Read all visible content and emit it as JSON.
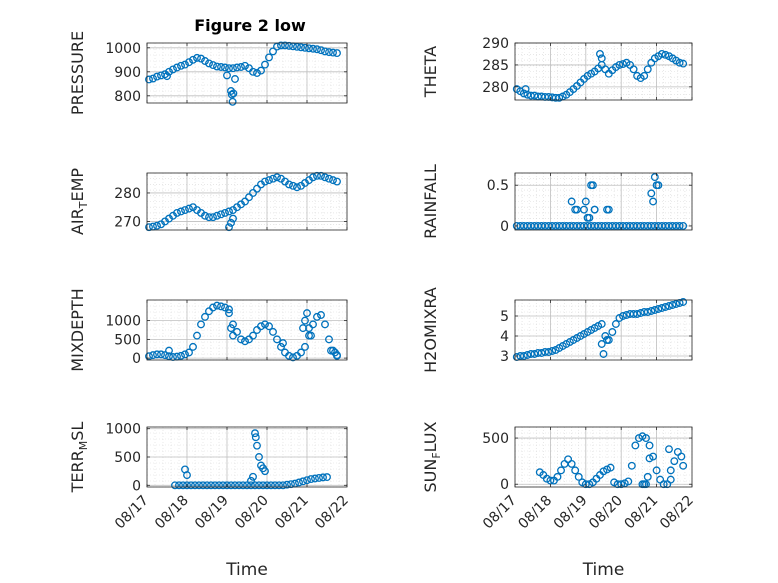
{
  "figure_title": "Figure 2 low",
  "colors": {
    "marker": "#0072BD",
    "axis": "#262626",
    "grid": "#bfbfbf",
    "background": "#ffffff"
  },
  "chart_data": [
    {
      "type": "scatter",
      "ylabel": "PRESSURE",
      "yticks": [
        "800",
        "900",
        "1000"
      ],
      "ylim": [
        770,
        1020
      ],
      "xlim": [
        0,
        5
      ],
      "xticklabels": [],
      "xlabel": "",
      "grid": true,
      "x": [
        0.05,
        0.15,
        0.25,
        0.35,
        0.45,
        0.55,
        0.65,
        0.75,
        0.85,
        0.95,
        1.05,
        1.15,
        1.25,
        1.35,
        1.45,
        1.55,
        1.65,
        1.75,
        1.85,
        1.95,
        2.05,
        2.15,
        2.25,
        2.35,
        2.45,
        2.55,
        2.65,
        2.75,
        2.85,
        2.95,
        3.05,
        3.15,
        3.25,
        3.35,
        3.45,
        3.55,
        3.65,
        3.75,
        3.85,
        3.95,
        4.05,
        4.15,
        4.25,
        4.35,
        4.45,
        4.55,
        4.65,
        4.75,
        2.1,
        2.12,
        2.14,
        2.16,
        2.2,
        2.0,
        0.5
      ],
      "y": [
        868,
        872,
        880,
        885,
        890,
        900,
        910,
        918,
        925,
        930,
        940,
        950,
        958,
        955,
        945,
        935,
        928,
        922,
        920,
        918,
        915,
        915,
        918,
        920,
        925,
        915,
        900,
        895,
        905,
        930,
        960,
        985,
        1005,
        1010,
        1010,
        1008,
        1006,
        1004,
        1002,
        1000,
        998,
        996,
        994,
        990,
        985,
        982,
        980,
        978,
        820,
        805,
        775,
        810,
        870,
        885,
        882
      ]
    },
    {
      "type": "scatter",
      "ylabel": "THETA",
      "yticks": [
        "280",
        "285",
        "290"
      ],
      "ylim": [
        277,
        290
      ],
      "xlim": [
        0,
        5
      ],
      "xticklabels": [],
      "xlabel": "",
      "grid": true,
      "x": [
        0.05,
        0.15,
        0.25,
        0.35,
        0.45,
        0.55,
        0.65,
        0.75,
        0.85,
        0.95,
        1.05,
        1.15,
        1.25,
        1.35,
        1.45,
        1.55,
        1.65,
        1.75,
        1.85,
        1.95,
        2.05,
        2.15,
        2.25,
        2.35,
        2.45,
        2.55,
        2.65,
        2.75,
        2.85,
        2.95,
        3.05,
        3.15,
        3.25,
        3.35,
        3.45,
        3.55,
        3.65,
        3.75,
        3.85,
        3.95,
        4.05,
        4.15,
        4.25,
        4.35,
        4.45,
        4.55,
        4.65,
        4.75,
        0.3,
        2.4,
        2.45
      ],
      "y": [
        279.5,
        279,
        278.5,
        278.2,
        278,
        278,
        277.8,
        277.8,
        277.7,
        277.7,
        277.6,
        277.5,
        277.5,
        277.8,
        278.2,
        278.8,
        279.5,
        280.2,
        281,
        281.8,
        282.5,
        283,
        283.5,
        284.2,
        285,
        284,
        283,
        283.8,
        284.5,
        285,
        285.2,
        285.5,
        285,
        284,
        282.5,
        282,
        282.5,
        284,
        285.5,
        286.5,
        287,
        287.5,
        287.3,
        287,
        286.5,
        286,
        285.5,
        285.3,
        279.5,
        287.5,
        286.5
      ]
    },
    {
      "type": "scatter",
      "ylabel": "AIR_TEMP",
      "yticks": [
        "270",
        "280"
      ],
      "ylim": [
        267,
        287
      ],
      "xlim": [
        0,
        5
      ],
      "xticklabels": [],
      "xlabel": "",
      "grid": true,
      "x": [
        0.05,
        0.15,
        0.25,
        0.35,
        0.45,
        0.55,
        0.65,
        0.75,
        0.85,
        0.95,
        1.05,
        1.15,
        1.25,
        1.35,
        1.45,
        1.55,
        1.65,
        1.75,
        1.85,
        1.95,
        2.05,
        2.15,
        2.25,
        2.35,
        2.45,
        2.55,
        2.65,
        2.75,
        2.85,
        2.95,
        3.05,
        3.15,
        3.25,
        3.35,
        3.45,
        3.55,
        3.65,
        3.75,
        3.85,
        3.95,
        4.05,
        4.15,
        4.25,
        4.35,
        4.45,
        4.55,
        4.65,
        4.75,
        2.05,
        2.1,
        2.15
      ],
      "y": [
        268,
        268.2,
        268.5,
        269,
        270,
        271,
        272,
        273,
        273.5,
        274,
        274.5,
        275,
        274,
        273,
        272,
        271.5,
        271.5,
        272,
        272.5,
        273,
        273.5,
        274,
        275,
        276,
        277,
        278.5,
        280,
        281.5,
        283,
        284,
        284.5,
        285,
        285.5,
        285,
        284,
        283,
        282.5,
        282,
        282.5,
        283.5,
        284.5,
        285.5,
        286,
        286,
        285.5,
        285,
        284.5,
        284,
        268,
        269.5,
        271
      ]
    },
    {
      "type": "scatter",
      "ylabel": "RAINFALL",
      "yticks": [
        "0",
        "0.5"
      ],
      "ylim": [
        -0.05,
        0.65
      ],
      "xlim": [
        0,
        5
      ],
      "xticklabels": [],
      "xlabel": "",
      "grid": true,
      "x": [
        0.05,
        0.15,
        0.25,
        0.35,
        0.45,
        0.55,
        0.65,
        0.75,
        0.85,
        0.95,
        1.05,
        1.15,
        1.25,
        1.35,
        1.45,
        1.55,
        1.65,
        1.75,
        1.85,
        1.95,
        2.05,
        2.15,
        2.25,
        2.35,
        2.45,
        2.55,
        2.65,
        2.75,
        2.85,
        2.95,
        3.05,
        3.15,
        3.25,
        3.35,
        3.45,
        3.55,
        3.65,
        3.75,
        3.85,
        3.95,
        4.05,
        4.15,
        4.25,
        4.35,
        4.45,
        4.55,
        4.65,
        4.75,
        1.6,
        1.7,
        1.75,
        1.95,
        2.0,
        2.05,
        2.1,
        2.15,
        2.2,
        2.25,
        2.25,
        2.6,
        2.65,
        3.85,
        3.9,
        3.95,
        4.0,
        4.05
      ],
      "y": [
        0,
        0,
        0,
        0,
        0,
        0,
        0,
        0,
        0,
        0,
        0,
        0,
        0,
        0,
        0,
        0,
        0,
        0,
        0,
        0,
        0,
        0,
        0,
        0,
        0,
        0,
        0,
        0,
        0,
        0,
        0,
        0,
        0,
        0,
        0,
        0,
        0,
        0,
        0,
        0,
        0,
        0,
        0,
        0,
        0,
        0,
        0,
        0,
        0.3,
        0.2,
        0.2,
        0.2,
        0.3,
        0.1,
        0.1,
        0.5,
        0.5,
        0.2,
        0.2,
        0.2,
        0.2,
        0.4,
        0.3,
        0.6,
        0.5,
        0.5
      ]
    },
    {
      "type": "scatter",
      "ylabel": "MIXDEPTH",
      "yticks": [
        "0",
        "500",
        "1000"
      ],
      "ylim": [
        -50,
        1550
      ],
      "xlim": [
        0,
        5
      ],
      "xticklabels": [],
      "xlabel": "",
      "grid": true,
      "x": [
        0.05,
        0.15,
        0.25,
        0.35,
        0.45,
        0.55,
        0.65,
        0.75,
        0.85,
        0.95,
        1.05,
        1.15,
        1.25,
        1.35,
        1.45,
        1.55,
        1.65,
        1.75,
        1.85,
        1.95,
        2.05,
        2.15,
        2.25,
        2.35,
        2.45,
        2.55,
        2.65,
        2.75,
        2.85,
        2.95,
        3.05,
        3.15,
        3.25,
        3.35,
        3.45,
        3.55,
        3.65,
        3.75,
        3.85,
        3.95,
        4.05,
        4.15,
        4.25,
        4.35,
        4.45,
        4.55,
        4.65,
        4.75,
        0.55,
        2.05,
        2.1,
        2.15,
        3.4,
        3.9,
        3.95,
        4.0,
        4.05,
        4.1,
        4.6,
        4.7,
        4.75
      ],
      "y": [
        50,
        80,
        100,
        100,
        80,
        50,
        30,
        40,
        60,
        100,
        150,
        300,
        600,
        900,
        1100,
        1250,
        1350,
        1400,
        1380,
        1350,
        1300,
        900,
        700,
        500,
        450,
        500,
        600,
        750,
        850,
        900,
        850,
        700,
        500,
        300,
        150,
        60,
        20,
        60,
        150,
        300,
        600,
        900,
        1100,
        1150,
        900,
        500,
        200,
        80,
        200,
        1200,
        800,
        600,
        400,
        800,
        1000,
        1200,
        800,
        600,
        200,
        150,
        60
      ]
    },
    {
      "type": "scatter",
      "ylabel": "H2OMIXRA",
      "yticks": [
        "3",
        "4",
        "5"
      ],
      "ylim": [
        2.8,
        5.8
      ],
      "xlim": [
        0,
        5
      ],
      "xticklabels": [],
      "xlabel": "",
      "grid": true,
      "x": [
        0.05,
        0.15,
        0.25,
        0.35,
        0.45,
        0.55,
        0.65,
        0.75,
        0.85,
        0.95,
        1.05,
        1.15,
        1.25,
        1.35,
        1.45,
        1.55,
        1.65,
        1.75,
        1.85,
        1.95,
        2.05,
        2.15,
        2.25,
        2.35,
        2.45,
        2.55,
        2.65,
        2.75,
        2.85,
        2.95,
        3.05,
        3.15,
        3.25,
        3.35,
        3.45,
        3.55,
        3.65,
        3.75,
        3.85,
        3.95,
        4.05,
        4.15,
        4.25,
        4.35,
        4.45,
        4.55,
        4.65,
        4.75,
        2.45,
        2.5,
        2.6
      ],
      "y": [
        2.95,
        3,
        3,
        3.05,
        3.1,
        3.1,
        3.15,
        3.15,
        3.2,
        3.2,
        3.25,
        3.3,
        3.4,
        3.5,
        3.6,
        3.7,
        3.8,
        3.9,
        4.0,
        4.1,
        4.2,
        4.3,
        4.4,
        4.5,
        4.6,
        4.0,
        3.8,
        4.2,
        4.6,
        4.9,
        5.0,
        5.05,
        5.1,
        5.1,
        5.1,
        5.15,
        5.2,
        5.2,
        5.25,
        5.3,
        5.35,
        5.4,
        5.45,
        5.5,
        5.55,
        5.6,
        5.65,
        5.7,
        3.6,
        3.1,
        3.8
      ]
    },
    {
      "type": "scatter",
      "ylabel": "TERR_MSL",
      "yticks": [
        "0",
        "500",
        "1000"
      ],
      "ylim": [
        -30,
        1030
      ],
      "xlim": [
        0,
        5
      ],
      "xticklabels": [
        "08/17",
        "08/18",
        "08/19",
        "08/20",
        "08/21",
        "08/22"
      ],
      "xlabel": "Time",
      "grid": true,
      "x": [
        0.7,
        0.8,
        0.9,
        1.0,
        1.1,
        1.2,
        1.3,
        1.4,
        1.5,
        1.6,
        1.7,
        1.8,
        1.9,
        2.0,
        2.1,
        2.2,
        2.3,
        2.4,
        2.5,
        2.6,
        2.7,
        2.8,
        2.9,
        3.0,
        3.1,
        3.2,
        3.3,
        3.4,
        3.5,
        3.6,
        3.7,
        3.8,
        3.9,
        4.0,
        4.1,
        4.2,
        4.3,
        4.4,
        4.5,
        0.95,
        1.0,
        2.7,
        2.72,
        2.75,
        2.8,
        2.85,
        2.9,
        2.95,
        2.65,
        2.6
      ],
      "y": [
        0,
        0,
        0,
        0,
        0,
        0,
        0,
        0,
        0,
        0,
        0,
        0,
        0,
        0,
        0,
        0,
        0,
        0,
        0,
        0,
        0,
        0,
        0,
        0,
        0,
        0,
        0,
        0,
        10,
        20,
        30,
        50,
        70,
        90,
        110,
        120,
        130,
        140,
        145,
        280,
        180,
        920,
        850,
        700,
        500,
        350,
        300,
        250,
        150,
        80
      ]
    },
    {
      "type": "scatter",
      "ylabel": "SUN_FLUX",
      "yticks": [
        "0",
        "500"
      ],
      "ylim": [
        -30,
        620
      ],
      "xlim": [
        0,
        5
      ],
      "xticklabels": [
        "08/17",
        "08/18",
        "08/19",
        "08/20",
        "08/21",
        "08/22"
      ],
      "xlabel": "Time",
      "grid": true,
      "x": [
        0.7,
        0.8,
        0.9,
        1.0,
        1.1,
        1.2,
        1.3,
        1.4,
        1.5,
        1.6,
        1.7,
        1.8,
        1.9,
        2.0,
        2.1,
        2.2,
        2.3,
        2.4,
        2.5,
        2.6,
        2.7,
        2.8,
        2.9,
        3.0,
        3.1,
        3.2,
        3.3,
        3.4,
        3.5,
        3.6,
        3.7,
        3.8,
        3.9,
        4.0,
        4.1,
        4.2,
        4.3,
        4.4,
        4.5,
        4.6,
        4.7,
        4.75,
        3.6,
        3.65,
        3.7,
        3.75,
        3.8,
        4.35,
        4.4
      ],
      "y": [
        130,
        100,
        60,
        40,
        40,
        80,
        150,
        220,
        270,
        220,
        150,
        80,
        20,
        0,
        0,
        20,
        60,
        100,
        140,
        160,
        180,
        20,
        0,
        0,
        10,
        30,
        200,
        420,
        500,
        520,
        500,
        420,
        300,
        150,
        50,
        0,
        0,
        50,
        250,
        350,
        300,
        200,
        0,
        0,
        0,
        80,
        280,
        380,
        150
      ]
    }
  ]
}
